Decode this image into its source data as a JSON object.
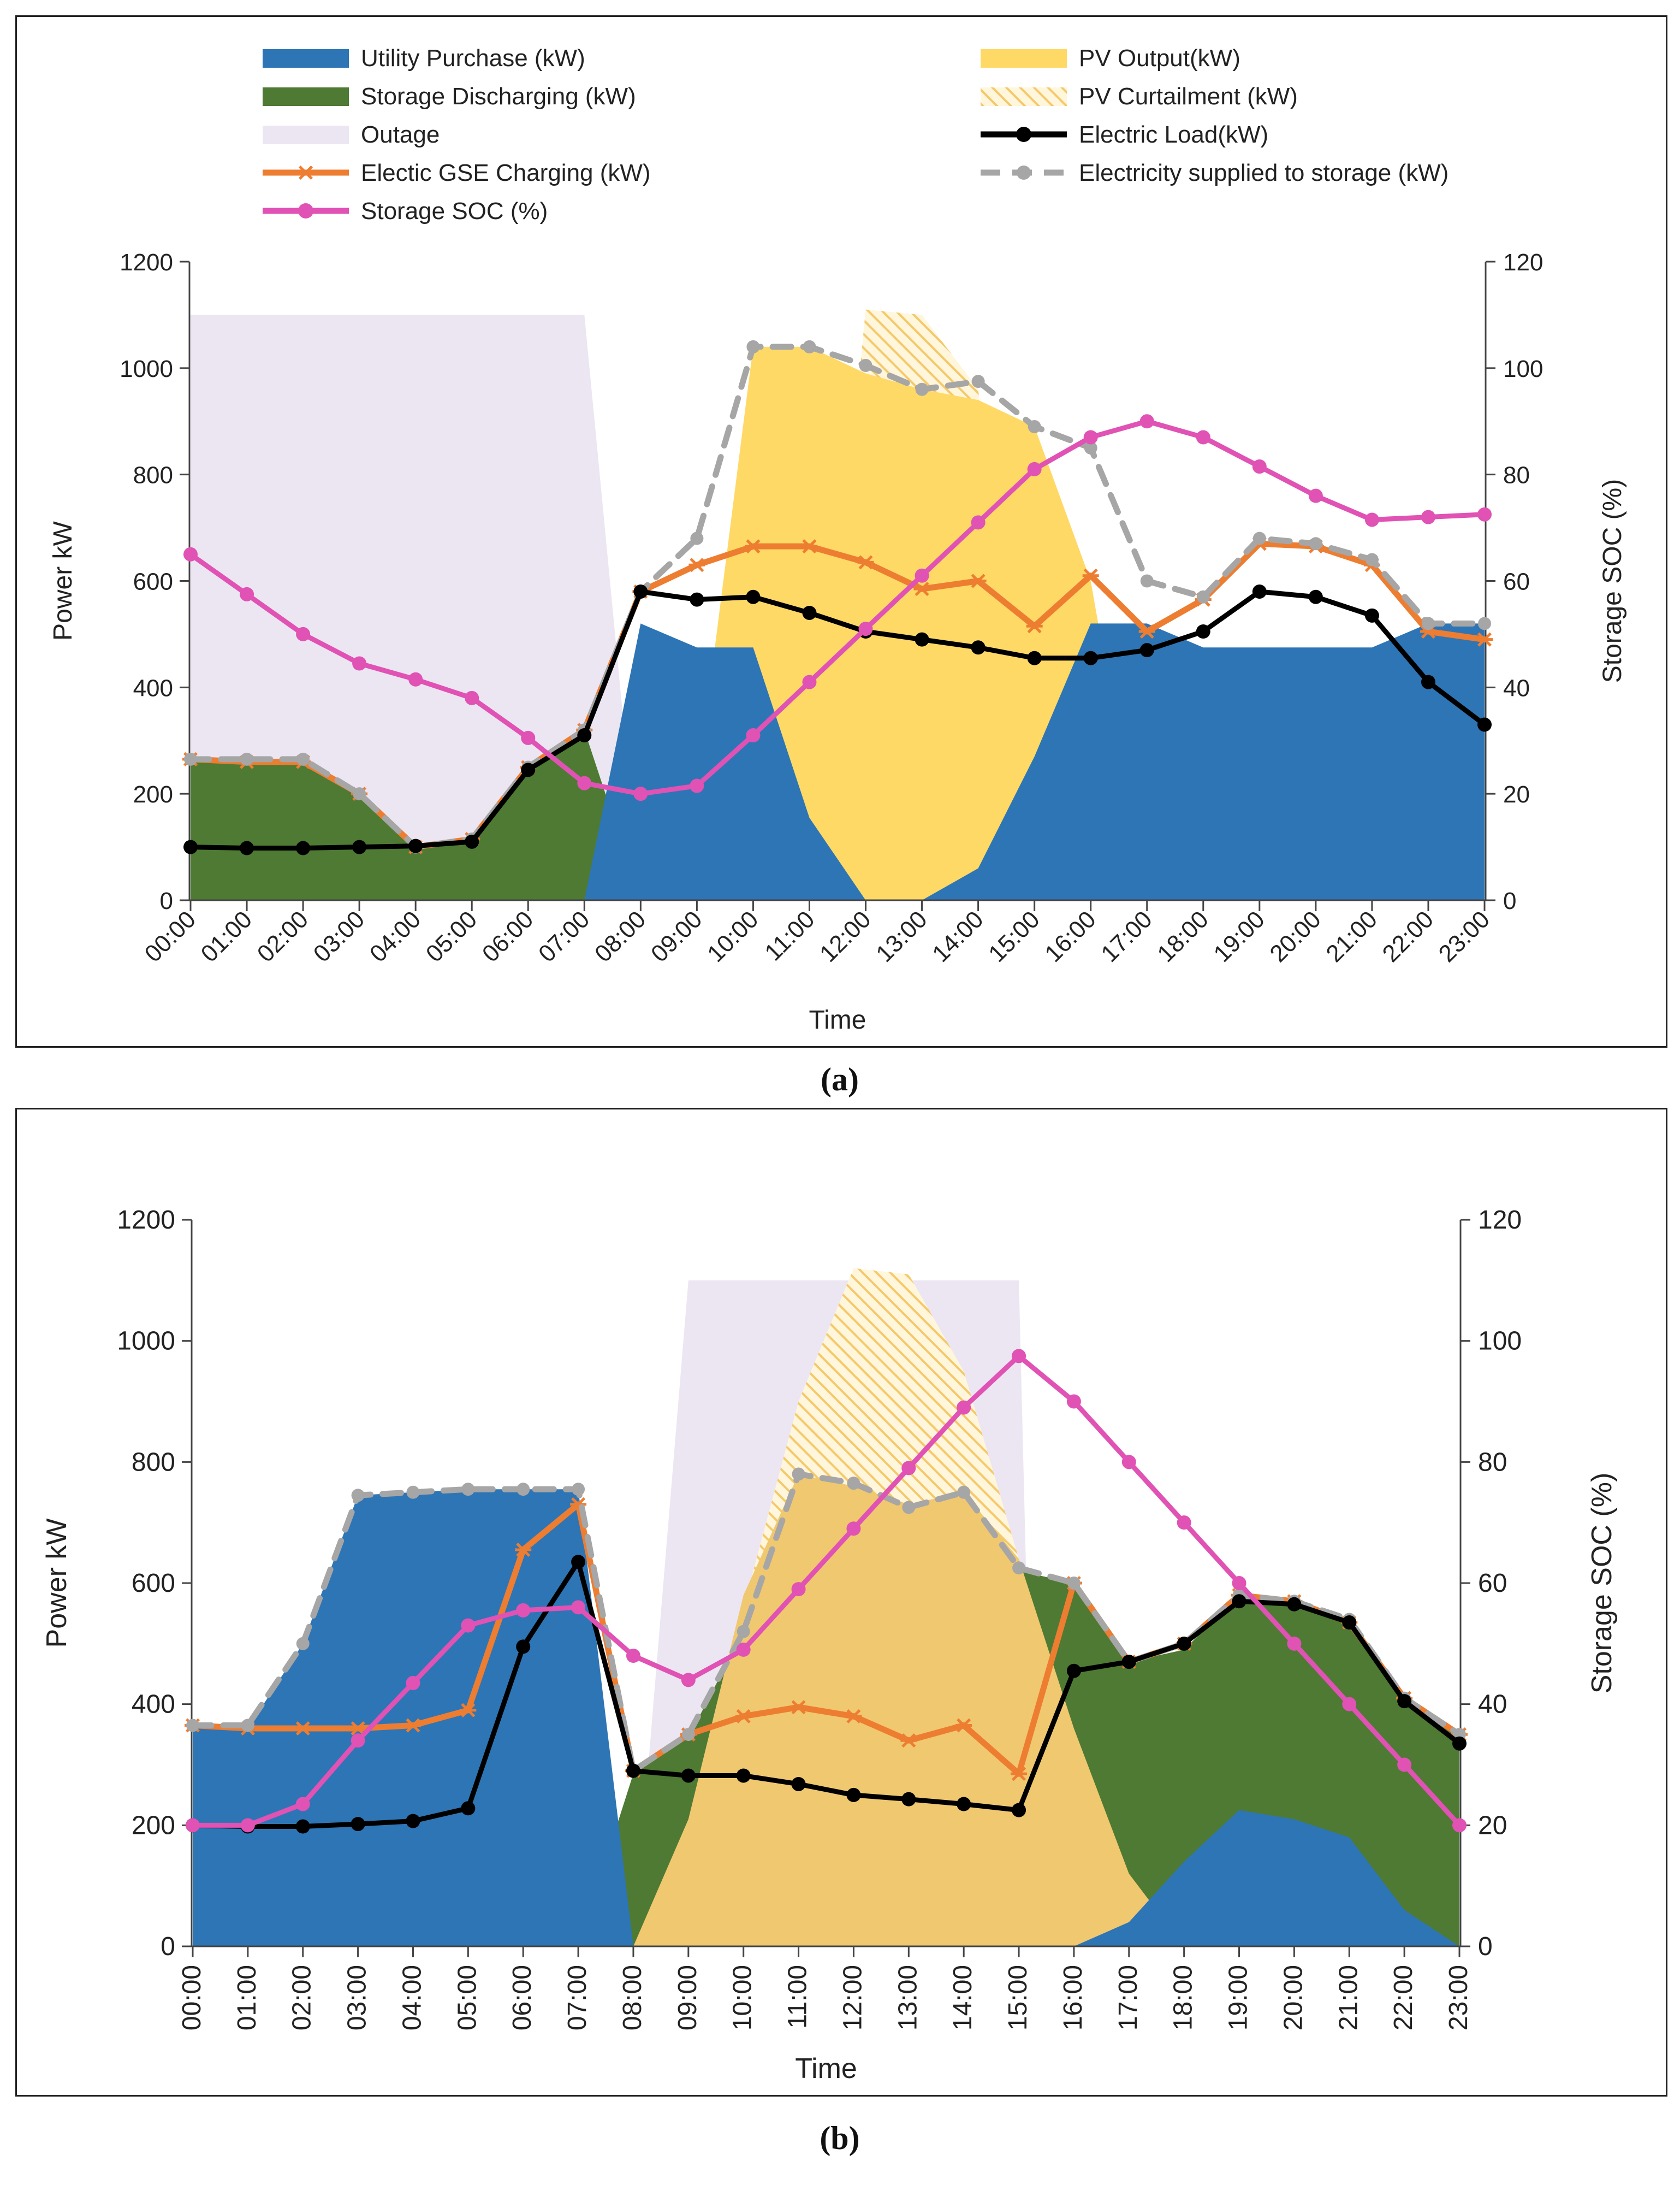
{
  "legend": {
    "items": [
      {
        "key": "utility",
        "label": "Utility Purchase (kW)",
        "kind": "area",
        "color": "#2e75b6"
      },
      {
        "key": "pv",
        "label": "PV Output(kW)",
        "kind": "area",
        "color": "#ffd966"
      },
      {
        "key": "storage_dis",
        "label": "Storage Discharging (kW)",
        "kind": "area",
        "color": "#4e7a33"
      },
      {
        "key": "pv_curt",
        "label": "PV Curtailment (kW)",
        "kind": "hatch",
        "color": "#f5c96a"
      },
      {
        "key": "outage",
        "label": "Outage",
        "kind": "area",
        "color": "#ece6f2"
      },
      {
        "key": "load",
        "label": "Electric Load(kW)",
        "kind": "line-dot",
        "color": "#000000"
      },
      {
        "key": "gse",
        "label": "Electic GSE Charging (kW)",
        "kind": "line-star",
        "color": "#ed7d31"
      },
      {
        "key": "storage_supply",
        "label": "Electricity supplied to storage (kW)",
        "kind": "line-dash",
        "color": "#a6a6a6"
      },
      {
        "key": "soc",
        "label": "Storage SOC (%)",
        "kind": "line-dot",
        "color": "#e052b4"
      }
    ]
  },
  "captions": {
    "a": "(a)",
    "b": "(b)"
  },
  "colors": {
    "utility": "#2e75b6",
    "storage": "#4e7a33",
    "pv": "#ffd966",
    "pv_b": "#f0c870",
    "curtail": "#f5c96a",
    "outage": "#ece6f2",
    "load": "#000000",
    "gse": "#ed7d31",
    "supply": "#a6a6a6",
    "soc": "#e052b4"
  },
  "chart_data": [
    {
      "id": "a",
      "type": "area",
      "xlabel": "Time",
      "ylabel": "Power kW",
      "y2label": "Storage SOC (%)",
      "ylim": [
        0,
        1200
      ],
      "yticks": [
        "0",
        "200",
        "400",
        "600",
        "800",
        "1000",
        "1200"
      ],
      "y2lim": [
        0,
        120
      ],
      "y2ticks": [
        "0",
        "20",
        "40",
        "60",
        "80",
        "100",
        "120"
      ],
      "categories": [
        "00:00",
        "01:00",
        "02:00",
        "03:00",
        "04:00",
        "05:00",
        "06:00",
        "07:00",
        "08:00",
        "09:00",
        "10:00",
        "11:00",
        "12:00",
        "13:00",
        "14:00",
        "15:00",
        "16:00",
        "17:00",
        "18:00",
        "19:00",
        "20:00",
        "21:00",
        "22:00",
        "23:00"
      ],
      "outage": {
        "start": 0,
        "end": 7.0,
        "end_fall": 8.0,
        "level": 1100
      },
      "series": [
        {
          "name": "Utility Purchase (kW)",
          "key": "utility",
          "values": [
            0,
            0,
            0,
            0,
            0,
            0,
            0,
            0,
            520,
            475,
            475,
            155,
            0,
            0,
            60,
            270,
            520,
            520,
            475,
            475,
            475,
            475,
            520,
            520
          ]
        },
        {
          "name": "Storage Discharging (kW)",
          "key": "storage_dis",
          "values": [
            265,
            265,
            265,
            200,
            100,
            110,
            250,
            320,
            0,
            0,
            0,
            0,
            0,
            0,
            0,
            0,
            0,
            0,
            0,
            195,
            185,
            160,
            0,
            0
          ]
        },
        {
          "name": "PV Output(kW)",
          "key": "pv",
          "values": [
            0,
            0,
            0,
            0,
            0,
            0,
            0,
            0,
            0,
            210,
            1040,
            1040,
            990,
            960,
            940,
            890,
            600,
            0,
            0,
            0,
            0,
            0,
            0,
            0
          ]
        },
        {
          "name": "PV Curtailment (kW)",
          "key": "pv_curt",
          "values": [
            0,
            0,
            0,
            0,
            0,
            0,
            0,
            0,
            0,
            0,
            0,
            0,
            1110,
            1100,
            960,
            0,
            0,
            0,
            0,
            0,
            0,
            0,
            0,
            0
          ]
        },
        {
          "name": "Electric Load(kW)",
          "key": "load",
          "values": [
            100,
            98,
            98,
            100,
            102,
            110,
            245,
            310,
            580,
            565,
            570,
            540,
            505,
            490,
            475,
            455,
            455,
            470,
            505,
            580,
            570,
            535,
            410,
            330
          ]
        },
        {
          "name": "Electic GSE Charging (kW)",
          "key": "gse",
          "values": [
            265,
            260,
            260,
            200,
            100,
            115,
            250,
            320,
            580,
            630,
            665,
            665,
            635,
            585,
            600,
            515,
            610,
            505,
            565,
            670,
            665,
            630,
            505,
            490
          ]
        },
        {
          "name": "Electricity supplied to storage (kW)",
          "key": "storage_supply",
          "values": [
            265,
            265,
            265,
            200,
            100,
            115,
            250,
            320,
            580,
            680,
            1040,
            1040,
            1005,
            960,
            975,
            890,
            850,
            600,
            570,
            680,
            670,
            640,
            520,
            520
          ]
        },
        {
          "name": "Storage SOC (%)",
          "key": "soc",
          "axis": "right",
          "values": [
            65,
            57.5,
            50,
            44.5,
            41.5,
            38,
            30.5,
            22,
            20,
            21.5,
            31,
            41,
            51,
            61,
            71,
            81,
            87,
            90,
            87,
            81.5,
            76,
            71.5,
            72,
            72.5
          ]
        }
      ]
    },
    {
      "id": "b",
      "type": "area",
      "xlabel": "Time",
      "ylabel": "Power kW",
      "y2label": "Storage SOC (%)",
      "ylim": [
        0,
        1200
      ],
      "yticks": [
        "0",
        "200",
        "400",
        "600",
        "800",
        "1000",
        "1200"
      ],
      "y2lim": [
        0,
        120
      ],
      "y2ticks": [
        "0",
        "20",
        "40",
        "60",
        "80",
        "100",
        "120"
      ],
      "categories": [
        "00:00",
        "01:00",
        "02:00",
        "03:00",
        "04:00",
        "05:00",
        "06:00",
        "07:00",
        "08:00",
        "09:00",
        "10:00",
        "11:00",
        "12:00",
        "13:00",
        "14:00",
        "15:00",
        "16:00",
        "17:00",
        "18:00",
        "19:00",
        "20:00",
        "21:00",
        "22:00",
        "23:00"
      ],
      "outage": {
        "start": 8.0,
        "start_rise": 9.0,
        "end": 15.0,
        "end_fall": 15.3,
        "level": 1100
      },
      "series": [
        {
          "name": "Utility Purchase (kW)",
          "key": "utility",
          "values": [
            360,
            360,
            500,
            745,
            750,
            755,
            755,
            755,
            0,
            0,
            0,
            0,
            0,
            0,
            0,
            0,
            0,
            40,
            140,
            225,
            210,
            180,
            60,
            0
          ]
        },
        {
          "name": "Storage Discharging (kW)",
          "key": "storage_dis",
          "values": [
            0,
            0,
            0,
            0,
            0,
            0,
            0,
            0,
            285,
            345,
            520,
            0,
            0,
            0,
            0,
            620,
            600,
            470,
            490,
            580,
            570,
            540,
            410,
            350
          ]
        },
        {
          "name": "PV Output(kW)",
          "key": "pv",
          "values": [
            0,
            0,
            0,
            0,
            0,
            0,
            0,
            0,
            0,
            210,
            580,
            780,
            760,
            730,
            750,
            640,
            360,
            120,
            0,
            0,
            0,
            0,
            0,
            0
          ]
        },
        {
          "name": "PV Curtailment (kW)",
          "key": "pv_curt",
          "values": [
            0,
            0,
            0,
            0,
            0,
            0,
            0,
            0,
            0,
            0,
            560,
            900,
            1120,
            1110,
            950,
            640,
            0,
            0,
            0,
            0,
            0,
            0,
            0,
            0
          ]
        },
        {
          "name": "Electric Load(kW)",
          "key": "load",
          "values": [
            200,
            198,
            198,
            202,
            207,
            228,
            495,
            635,
            290,
            282,
            282,
            268,
            250,
            243,
            235,
            225,
            455,
            470,
            500,
            570,
            565,
            535,
            405,
            335
          ]
        },
        {
          "name": "Electic GSE Charging (kW)",
          "key": "gse",
          "values": [
            365,
            360,
            360,
            360,
            365,
            390,
            655,
            730,
            290,
            350,
            380,
            395,
            380,
            340,
            365,
            285,
            600,
            470,
            500,
            580,
            570,
            535,
            410,
            350
          ]
        },
        {
          "name": "Electricity supplied to storage (kW)",
          "key": "storage_supply",
          "values": [
            365,
            365,
            500,
            745,
            750,
            755,
            755,
            755,
            290,
            350,
            520,
            780,
            765,
            725,
            750,
            625,
            600,
            470,
            500,
            580,
            570,
            540,
            410,
            350
          ]
        },
        {
          "name": "Storage SOC (%)",
          "key": "soc",
          "axis": "right",
          "values": [
            20,
            20,
            23.5,
            34,
            43.5,
            53,
            55.5,
            56,
            48,
            44,
            49,
            59,
            69,
            79,
            89,
            97.5,
            90,
            80,
            70,
            60,
            50,
            40,
            30,
            20
          ]
        }
      ]
    }
  ]
}
